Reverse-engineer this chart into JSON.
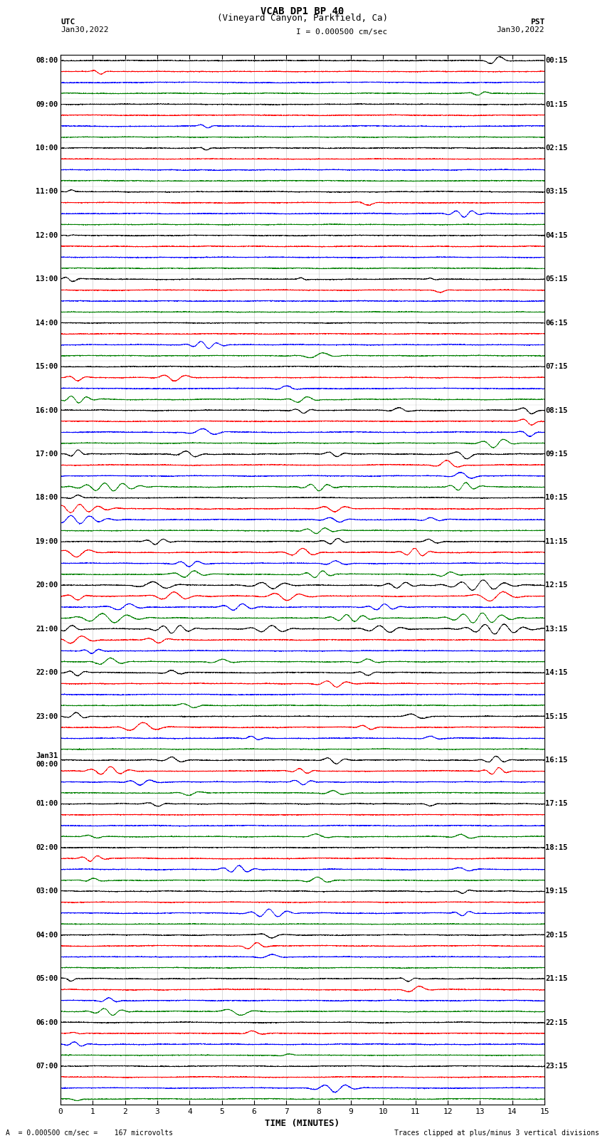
{
  "title_line1": "VCAB DP1 BP 40",
  "title_line2": "(Vineyard Canyon, Parkfield, Ca)",
  "scale_text": "I = 0.000500 cm/sec",
  "left_label_top": "UTC",
  "left_label_date": "Jan30,2022",
  "right_label_top": "PST",
  "right_label_date": "Jan30,2022",
  "xlabel": "TIME (MINUTES)",
  "bottom_left_text": "A  = 0.000500 cm/sec =    167 microvolts",
  "bottom_right_text": "Traces clipped at plus/minus 3 vertical divisions",
  "colors": [
    "black",
    "red",
    "blue",
    "green"
  ],
  "xlim": [
    0,
    15
  ],
  "xticks": [
    0,
    1,
    2,
    3,
    4,
    5,
    6,
    7,
    8,
    9,
    10,
    11,
    12,
    13,
    14,
    15
  ],
  "fig_width": 8.5,
  "fig_height": 16.13,
  "bg_color": "white",
  "utc_labels": [
    [
      "08:00",
      0
    ],
    [
      "09:00",
      4
    ],
    [
      "10:00",
      8
    ],
    [
      "11:00",
      12
    ],
    [
      "12:00",
      16
    ],
    [
      "13:00",
      20
    ],
    [
      "14:00",
      24
    ],
    [
      "15:00",
      28
    ],
    [
      "16:00",
      32
    ],
    [
      "17:00",
      36
    ],
    [
      "18:00",
      40
    ],
    [
      "19:00",
      44
    ],
    [
      "20:00",
      48
    ],
    [
      "21:00",
      52
    ],
    [
      "22:00",
      56
    ],
    [
      "23:00",
      60
    ],
    [
      "Jan31\n00:00",
      64
    ],
    [
      "01:00",
      68
    ],
    [
      "02:00",
      72
    ],
    [
      "03:00",
      76
    ],
    [
      "04:00",
      80
    ],
    [
      "05:00",
      84
    ],
    [
      "06:00",
      88
    ],
    [
      "07:00",
      92
    ]
  ],
  "pst_labels": [
    [
      "00:15",
      0
    ],
    [
      "01:15",
      4
    ],
    [
      "02:15",
      8
    ],
    [
      "03:15",
      12
    ],
    [
      "04:15",
      16
    ],
    [
      "05:15",
      20
    ],
    [
      "06:15",
      24
    ],
    [
      "07:15",
      28
    ],
    [
      "08:15",
      32
    ],
    [
      "09:15",
      36
    ],
    [
      "10:15",
      40
    ],
    [
      "11:15",
      44
    ],
    [
      "12:15",
      48
    ],
    [
      "13:15",
      52
    ],
    [
      "14:15",
      56
    ],
    [
      "15:15",
      60
    ],
    [
      "16:15",
      64
    ],
    [
      "17:15",
      68
    ],
    [
      "18:15",
      72
    ],
    [
      "19:15",
      76
    ],
    [
      "20:15",
      80
    ],
    [
      "21:15",
      84
    ],
    [
      "22:15",
      88
    ],
    [
      "23:15",
      92
    ]
  ],
  "n_hour_groups": 24,
  "traces_per_group": 4,
  "noise_base": 0.018,
  "seed": 12345
}
